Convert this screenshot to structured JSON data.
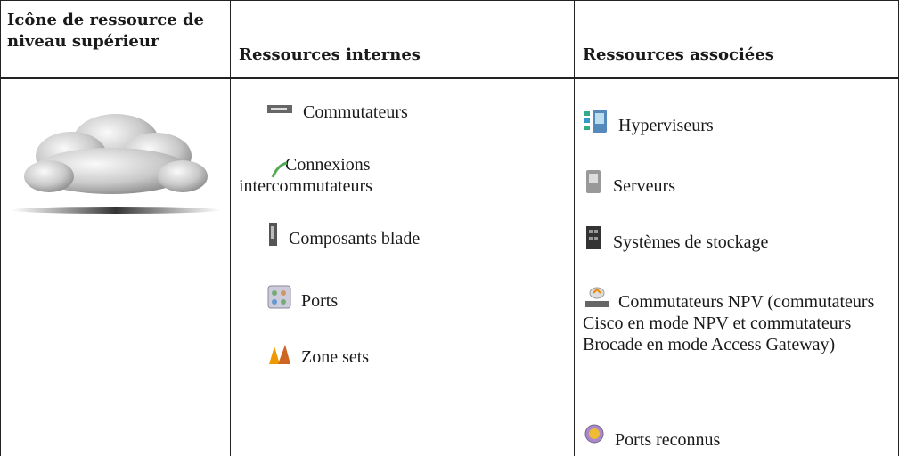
{
  "table": {
    "headers": [
      "Icône de ressource de niveau supérieur",
      "Ressources internes",
      "Ressources associées"
    ],
    "internal": [
      "Commutateurs",
      "Connexions intercommutateurs",
      "Composants blade",
      "Ports",
      "Zone sets"
    ],
    "associated": [
      "Hyperviseurs",
      "Serveurs",
      "Systèmes de stockage",
      "Commutateurs NPV (commutateurs Cisco en mode NPV et commutateurs Brocade en mode Access Gateway)",
      "Ports reconnus"
    ]
  }
}
